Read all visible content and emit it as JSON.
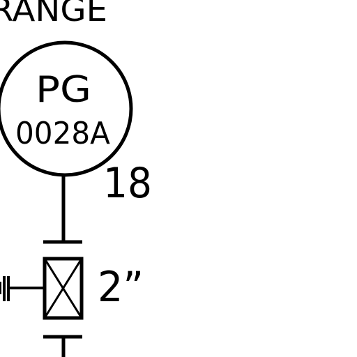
{
  "header": {
    "label": "RANGE"
  },
  "instrument": {
    "tag_type": "PG",
    "tag_number": "0028A",
    "connection_number": "18"
  },
  "valve": {
    "size_label": "2”"
  },
  "colors": {
    "line": "#000000",
    "background": "#ffffff"
  }
}
